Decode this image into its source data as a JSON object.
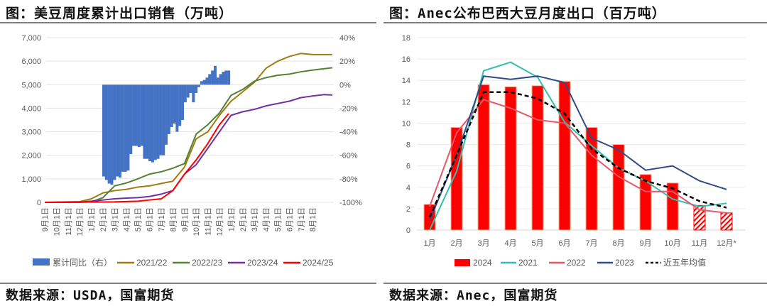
{
  "left_panel": {
    "title": "图：美豆周度累计出口销售（万吨）",
    "source": "数据来源：USDA，国富期货"
  },
  "right_panel": {
    "title": "图：Anec公布巴西大豆月度出口（百万吨）",
    "source": "数据来源：Anec，国富期货"
  },
  "chart_data": [
    {
      "type": "line",
      "title": "美豆周度累计出口销售（万吨）",
      "x_tick_labels": [
        "9月1日",
        "10月1日",
        "11月1日",
        "12月1日",
        "1月1日",
        "2月1日",
        "3月1日",
        "4月1日",
        "5月1日",
        "6月1日",
        "7月1日",
        "8月1日",
        "9月1日",
        "10月1日",
        "11月1日",
        "12月1日",
        "1月1日",
        "2月1日",
        "3月1日",
        "4月1日",
        "5月1日",
        "6月1日",
        "7月1日",
        "8月1日"
      ],
      "y_left": {
        "range": [
          0,
          7000
        ],
        "ticks": [
          "0",
          "1,000",
          "2,000",
          "3,000",
          "4,000",
          "5,000",
          "6,000",
          "7,000"
        ]
      },
      "y_right": {
        "range": [
          -100,
          40
        ],
        "ticks": [
          "-100%",
          "-80%",
          "-60%",
          "-40%",
          "-20%",
          "0%",
          "20%",
          "40%"
        ]
      },
      "legend_position": "bottom",
      "bar_series": {
        "name": "累计同比（右）",
        "color": "#4472c4",
        "x_start_month": 5.06,
        "x_end_month": 15.8,
        "values": [
          -78,
          -81,
          -84,
          -85,
          -81,
          -78,
          -79,
          -74,
          -74,
          -73,
          -59,
          -52,
          -52,
          -53,
          -52,
          -63,
          -63,
          -65,
          -66,
          -64,
          -63,
          -60,
          -60,
          -51,
          -42,
          -36,
          -33,
          -40,
          -35,
          -30,
          -15,
          -11,
          -7,
          -15,
          -7,
          -2,
          3,
          4,
          6,
          9,
          12,
          16,
          6,
          9,
          11,
          12,
          12
        ]
      },
      "series": [
        {
          "name": "2021/22",
          "color": "#a07c10",
          "points": [
            [
              0,
              0
            ],
            [
              3,
              30
            ],
            [
              4,
              150
            ],
            [
              5,
              400
            ],
            [
              6,
              500
            ],
            [
              7,
              550
            ],
            [
              8,
              650
            ],
            [
              9,
              700
            ],
            [
              10,
              800
            ],
            [
              11,
              900
            ],
            [
              12,
              1500
            ],
            [
              13,
              2700
            ],
            [
              14,
              3000
            ],
            [
              15,
              3700
            ],
            [
              16,
              4300
            ],
            [
              17,
              4700
            ],
            [
              18,
              5100
            ],
            [
              19,
              5700
            ],
            [
              20,
              6000
            ],
            [
              21,
              6200
            ],
            [
              22,
              6330
            ],
            [
              23,
              6280
            ],
            [
              24,
              6280
            ],
            [
              24.7,
              6280
            ]
          ]
        },
        {
          "name": "2022/23",
          "color": "#548235",
          "points": [
            [
              0,
              0
            ],
            [
              3,
              0
            ],
            [
              4,
              20
            ],
            [
              5,
              200
            ],
            [
              6,
              700
            ],
            [
              7,
              820
            ],
            [
              8,
              1000
            ],
            [
              9,
              1200
            ],
            [
              10,
              1300
            ],
            [
              11,
              1450
            ],
            [
              12,
              1650
            ],
            [
              13,
              2900
            ],
            [
              14,
              3300
            ],
            [
              15,
              3800
            ],
            [
              16,
              4550
            ],
            [
              17,
              4800
            ],
            [
              18,
              5150
            ],
            [
              19,
              5300
            ],
            [
              20,
              5400
            ],
            [
              21,
              5450
            ],
            [
              22,
              5550
            ],
            [
              23,
              5620
            ],
            [
              24,
              5680
            ],
            [
              24.7,
              5720
            ]
          ]
        },
        {
          "name": "2023/24",
          "color": "#7030a0",
          "points": [
            [
              0,
              0
            ],
            [
              3,
              10
            ],
            [
              4,
              50
            ],
            [
              5,
              100
            ],
            [
              6,
              150
            ],
            [
              7,
              180
            ],
            [
              8,
              200
            ],
            [
              9,
              250
            ],
            [
              10,
              350
            ],
            [
              11,
              500
            ],
            [
              12,
              1200
            ],
            [
              13,
              1600
            ],
            [
              14,
              2300
            ],
            [
              15,
              3000
            ],
            [
              16,
              3700
            ],
            [
              17,
              3850
            ],
            [
              18,
              3950
            ],
            [
              19,
              4100
            ],
            [
              20,
              4200
            ],
            [
              21,
              4300
            ],
            [
              22,
              4450
            ],
            [
              23,
              4520
            ],
            [
              24,
              4580
            ],
            [
              24.7,
              4560
            ]
          ]
        },
        {
          "name": "2024/25",
          "color": "#ff0000",
          "points": [
            [
              0,
              0
            ],
            [
              6,
              20
            ],
            [
              8,
              50
            ],
            [
              9,
              100
            ],
            [
              10,
              150
            ],
            [
              11,
              500
            ],
            [
              12,
              1200
            ],
            [
              13,
              1800
            ],
            [
              14,
              2500
            ],
            [
              15,
              3300
            ],
            [
              15.8,
              3776
            ]
          ]
        }
      ]
    },
    {
      "type": "bar",
      "title": "Anec公布巴西大豆月度出口（百万吨）",
      "categories": [
        "1月",
        "2月",
        "3月",
        "4月",
        "5月",
        "6月",
        "7月",
        "8月",
        "9月",
        "10月",
        "11月",
        "12月*"
      ],
      "ylim": [
        0,
        18
      ],
      "y_ticks": [
        "0",
        "2",
        "4",
        "6",
        "8",
        "10",
        "12",
        "14",
        "16",
        "18"
      ],
      "legend_position": "bottom",
      "bar_series": {
        "name": "2024",
        "color": "#ff0000",
        "values": [
          2.4,
          9.6,
          13.6,
          13.4,
          13.5,
          13.9,
          9.6,
          8.0,
          5.2,
          4.4,
          2.3,
          1.6
        ],
        "hatched_from_index": 10
      },
      "series": [
        {
          "name": "2021",
          "color": "#33bfb0",
          "values": [
            0,
            5.5,
            14.9,
            15.7,
            14.3,
            10.1,
            7.9,
            5.8,
            4.6,
            2.9,
            2.2,
            2.5
          ]
        },
        {
          "name": "2022",
          "color": "#e8566a",
          "values": [
            2.2,
            9.1,
            12.2,
            11.4,
            10.3,
            10.0,
            7.0,
            5.0,
            3.6,
            3.6,
            1.9,
            1.6
          ]
        },
        {
          "name": "2023",
          "color": "#2f4b8a",
          "values": [
            0.9,
            7.0,
            14.4,
            14.1,
            14.4,
            13.8,
            8.6,
            7.5,
            5.6,
            6.0,
            4.6,
            3.8
          ]
        },
        {
          "name": "近五年均值",
          "color": "#000000",
          "dashed": true,
          "values": [
            1.2,
            7.0,
            12.9,
            12.9,
            12.3,
            10.9,
            7.6,
            5.8,
            4.6,
            3.9,
            2.7,
            2.1
          ]
        }
      ]
    }
  ]
}
